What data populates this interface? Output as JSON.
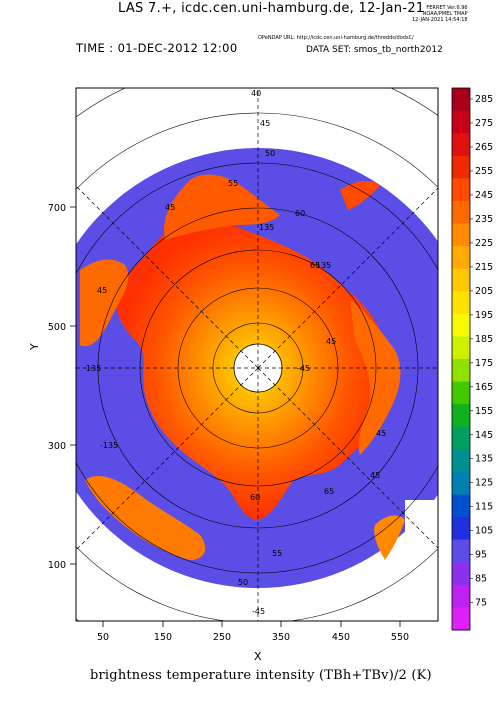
{
  "header": {
    "title": "LAS 7.+, icdc.cen.uni-hamburg.de, 12-Jan-21",
    "ferret_line1": "FERRET Ver.6.96",
    "ferret_line2": "NOAA/PMEL TMAP",
    "ferret_line3": "12-JAN-2021 14:54:18",
    "time": "TIME : 01-DEC-2012 12:00",
    "opendap": "OPeNDAP URL: http://icdc.cen.uni-hamburg.de/thredds/dodsC/",
    "dataset": "DATA SET: smos_tb_north2012"
  },
  "axes": {
    "xlabel": "X",
    "ylabel": "Y",
    "xticks": [
      "50",
      "150",
      "250",
      "350",
      "450",
      "550"
    ],
    "yticks": [
      "700",
      "500",
      "300",
      "100"
    ]
  },
  "map": {
    "projection": "polar stereographic (north)",
    "grid_labels": [
      "40",
      "45",
      "50",
      "55",
      "60",
      "65",
      "45",
      "45",
      "135",
      "135",
      "135",
      "-135",
      "-45",
      "-45",
      "45",
      "50",
      "55",
      "60",
      "65",
      "45",
      "45"
    ],
    "ocean_color": "#5a4ee6",
    "missing_color": "#ffffff"
  },
  "colorbar": {
    "levels": [
      "285",
      "275",
      "265",
      "255",
      "245",
      "235",
      "225",
      "215",
      "205",
      "195",
      "185",
      "175",
      "165",
      "155",
      "145",
      "135",
      "125",
      "115",
      "105",
      "95",
      "85",
      "75"
    ],
    "colors": [
      "#a8001a",
      "#c8001a",
      "#e01010",
      "#f02a00",
      "#ff4a00",
      "#ff6a00",
      "#ff8c00",
      "#ffaa00",
      "#ffc800",
      "#ffe100",
      "#f8f800",
      "#ccf000",
      "#90e000",
      "#40c800",
      "#10b020",
      "#00a060",
      "#009090",
      "#0080b0",
      "#0050d0",
      "#2030e0",
      "#5a4ee6",
      "#8a30ee",
      "#c020f0",
      "#e020f8"
    ],
    "unit_caption": "brightness temperature intensity (TBh+TBv)/2 (K)"
  }
}
